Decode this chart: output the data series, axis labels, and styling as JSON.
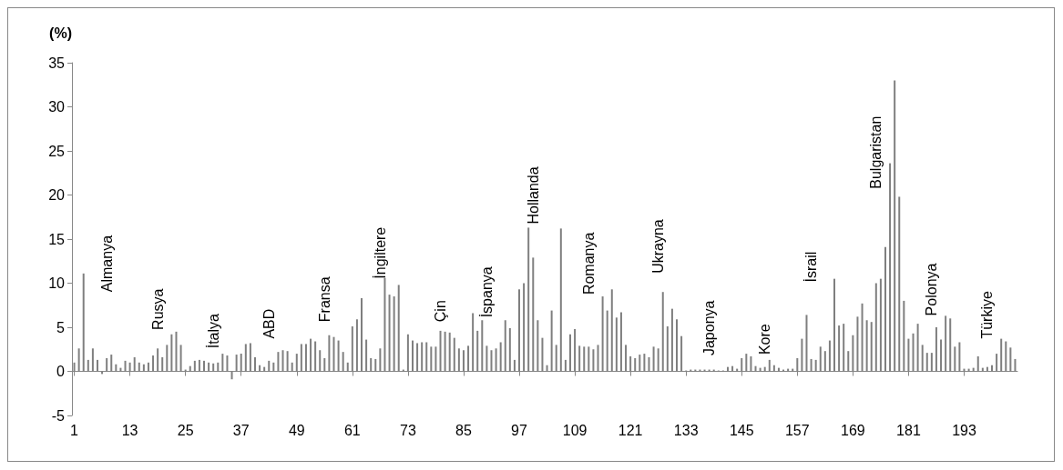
{
  "chart_data": {
    "type": "bar",
    "ylabel": "(%)",
    "color": "#7f7f7f",
    "x": [
      1,
      2,
      3,
      4,
      5,
      6,
      7,
      8,
      9,
      10,
      11,
      12,
      13,
      14,
      15,
      16,
      17,
      18,
      19,
      20,
      21,
      22,
      23,
      24,
      25,
      26,
      27,
      28,
      29,
      30,
      31,
      32,
      33,
      34,
      35,
      36,
      37,
      38,
      39,
      40,
      41,
      42,
      43,
      44,
      45,
      46,
      47,
      48,
      49,
      50,
      51,
      52,
      53,
      54,
      55,
      56,
      57,
      58,
      59,
      60,
      61,
      62,
      63,
      64,
      65,
      66,
      67,
      68,
      69,
      70,
      71,
      72,
      73,
      74,
      75,
      76,
      77,
      78,
      79,
      80,
      81,
      82,
      83,
      84,
      85,
      86,
      87,
      88,
      89,
      90,
      91,
      92,
      93,
      94,
      95,
      96,
      97,
      98,
      99,
      100,
      101,
      102,
      103,
      104,
      105,
      106,
      107,
      108,
      109,
      110,
      111,
      112,
      113,
      114,
      115,
      116,
      117,
      118,
      119,
      120,
      121,
      122,
      123,
      124,
      125,
      126,
      127,
      128,
      129,
      130,
      131,
      132,
      133,
      134,
      135,
      136,
      137,
      138,
      139,
      140,
      141,
      142,
      143,
      144,
      145,
      146,
      147,
      148,
      149,
      150,
      151,
      152,
      153,
      154,
      155,
      156,
      157,
      158,
      159,
      160,
      161,
      162,
      163,
      164,
      165,
      166,
      167,
      168,
      169,
      170,
      171,
      172,
      173,
      174,
      175,
      176,
      177,
      178,
      179,
      180,
      181,
      182,
      183,
      184,
      185,
      186,
      187,
      188,
      189,
      190,
      191,
      192,
      193,
      194,
      195,
      196,
      197,
      198,
      199,
      200,
      201,
      202,
      203,
      204
    ],
    "values": [
      1.0,
      2.6,
      11.1,
      1.3,
      2.6,
      1.3,
      -0.3,
      1.5,
      1.9,
      0.8,
      0.4,
      1.2,
      1.0,
      1.6,
      1.0,
      0.8,
      1.0,
      1.8,
      2.6,
      1.6,
      3.0,
      4.2,
      4.5,
      3.0,
      0.2,
      0.6,
      1.2,
      1.3,
      1.2,
      1.0,
      0.9,
      1.0,
      2.0,
      1.8,
      -0.9,
      1.9,
      2.0,
      3.1,
      3.2,
      1.6,
      0.7,
      0.5,
      1.2,
      1.0,
      2.2,
      2.4,
      2.3,
      1.0,
      2.0,
      3.1,
      3.1,
      3.7,
      3.4,
      2.4,
      1.5,
      4.1,
      3.9,
      3.5,
      2.2,
      1.0,
      5.1,
      5.9,
      8.3,
      3.6,
      1.5,
      1.4,
      2.6,
      10.6,
      8.7,
      8.5,
      9.8,
      0.2,
      4.2,
      3.5,
      3.2,
      3.3,
      3.3,
      2.8,
      2.8,
      4.6,
      4.5,
      4.4,
      3.8,
      2.6,
      2.4,
      2.9,
      6.6,
      4.6,
      5.8,
      2.9,
      2.4,
      2.6,
      3.3,
      5.8,
      4.9,
      1.3,
      9.3,
      10.0,
      16.3,
      12.9,
      5.8,
      3.8,
      0.7,
      6.9,
      3.0,
      16.2,
      1.3,
      4.2,
      4.8,
      2.9,
      2.8,
      2.8,
      2.5,
      3.0,
      8.5,
      6.9,
      9.3,
      6.1,
      6.7,
      3.0,
      1.7,
      1.5,
      1.9,
      2.0,
      1.6,
      2.8,
      2.6,
      9.0,
      5.1,
      7.1,
      5.9,
      4.0,
      0.1,
      0.2,
      0.2,
      0.2,
      0.2,
      0.2,
      0.2,
      0.1,
      0.1,
      0.5,
      0.6,
      0.3,
      1.5,
      2.0,
      1.7,
      0.6,
      0.4,
      0.5,
      1.3,
      0.7,
      0.4,
      0.2,
      0.3,
      0.3,
      1.5,
      3.7,
      6.4,
      1.4,
      1.3,
      2.8,
      2.3,
      3.5,
      10.5,
      5.2,
      5.4,
      2.3,
      4.1,
      6.2,
      7.7,
      5.8,
      5.6,
      10.0,
      10.5,
      14.1,
      23.6,
      33.0,
      19.8,
      8.0,
      3.7,
      4.3,
      5.4,
      3.0,
      2.1,
      2.1,
      5.0,
      3.6,
      6.3,
      6.0,
      2.8,
      3.3,
      0.3,
      0.3,
      0.4,
      1.7,
      0.4,
      0.5,
      0.7,
      2.0,
      3.7,
      3.4,
      2.7,
      1.4
    ],
    "xlim": [
      0.5,
      204.5
    ],
    "xticks": [
      1,
      13,
      25,
      37,
      49,
      61,
      73,
      85,
      97,
      109,
      121,
      133,
      145,
      157,
      169,
      181,
      193
    ],
    "ylim": [
      -5,
      35
    ],
    "yticks": [
      -5,
      0,
      5,
      10,
      15,
      20,
      25,
      30,
      35
    ],
    "annotations": [
      "Almanya",
      "Rusya",
      "İtalya",
      "ABD",
      "Fransa",
      "İngiltere",
      "Çin",
      "İspanya",
      "Hollanda",
      "Romanya",
      "Ukrayna",
      "Japonya",
      "Kore",
      "İsrail",
      "Bulgaristan",
      "Polonya",
      "Türkiye"
    ]
  }
}
